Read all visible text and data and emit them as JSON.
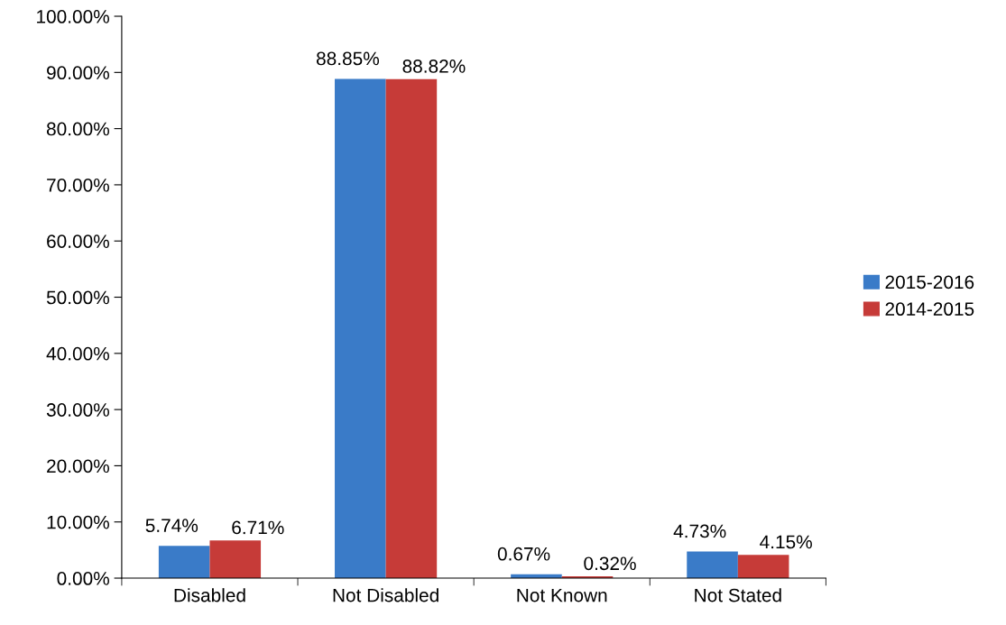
{
  "chart_data": {
    "type": "bar",
    "categories": [
      "Disabled",
      "Not Disabled",
      "Not Known",
      "Not Stated"
    ],
    "series": [
      {
        "name": "2015-2016",
        "color": "#3a7bc8",
        "values": [
          5.74,
          88.85,
          0.67,
          4.73
        ],
        "value_labels": [
          "5.74%",
          "88.85%",
          "0.67%",
          "4.73%"
        ]
      },
      {
        "name": "2014-2015",
        "color": "#c63b38",
        "values": [
          6.71,
          88.82,
          0.32,
          4.15
        ],
        "value_labels": [
          "6.71%",
          "88.82%",
          "0.32%",
          "4.15%"
        ]
      }
    ],
    "ylim": [
      0,
      100
    ],
    "yticks": [
      {
        "value": 0,
        "label": "0.00%"
      },
      {
        "value": 10,
        "label": "10.00%"
      },
      {
        "value": 20,
        "label": "20.00%"
      },
      {
        "value": 30,
        "label": "30.00%"
      },
      {
        "value": 40,
        "label": "40.00%"
      },
      {
        "value": 50,
        "label": "50.00%"
      },
      {
        "value": 60,
        "label": "60.00%"
      },
      {
        "value": 70,
        "label": "70.00%"
      },
      {
        "value": 80,
        "label": "80.00%"
      },
      {
        "value": 90,
        "label": "90.00%"
      },
      {
        "value": 100,
        "label": "100.00%"
      }
    ],
    "grid": false,
    "legend": "right"
  }
}
